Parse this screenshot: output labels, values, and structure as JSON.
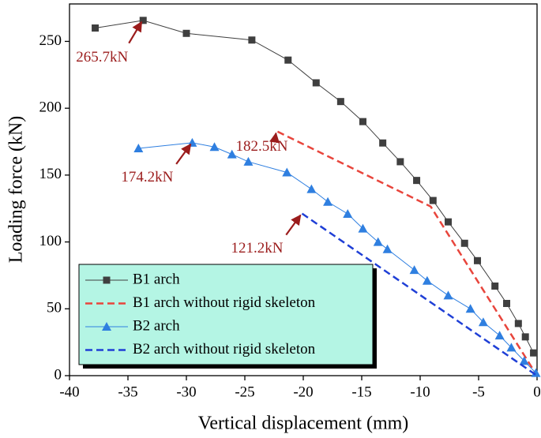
{
  "chart_data": {
    "type": "line",
    "xlabel": "Vertical displacement (mm)",
    "ylabel": "Loading force (kN)",
    "xlim": [
      -40,
      0
    ],
    "ylim": [
      0,
      278
    ],
    "xticks": [
      -40,
      -35,
      -30,
      -25,
      -20,
      -15,
      -10,
      -5,
      0
    ],
    "yticks": [
      0,
      50,
      100,
      150,
      200,
      250
    ],
    "legend": "lower left",
    "series": [
      {
        "name": "B1 arch",
        "color": "#3f3f3f",
        "style": "solid",
        "marker": "square",
        "x": [
          -37.8,
          -33.7,
          -30.0,
          -24.4,
          -21.3,
          -18.9,
          -16.8,
          -14.9,
          -13.2,
          -11.7,
          -10.3,
          -8.9,
          -7.6,
          -6.2,
          -5.1,
          -3.6,
          -2.6,
          -1.6,
          -1.0,
          -0.3
        ],
        "values": [
          260,
          265.7,
          256,
          251,
          236,
          219,
          205,
          190,
          174,
          160,
          146,
          131,
          115,
          99,
          86,
          67,
          54,
          39,
          29,
          17
        ]
      },
      {
        "name": "B1 arch without rigid skeleton",
        "color": "#e8453c",
        "style": "dashed",
        "marker": null,
        "x": [
          -22.2,
          -9.1,
          0
        ],
        "values": [
          182.5,
          126.5,
          0
        ]
      },
      {
        "name": "B2 arch",
        "color": "#2f7fe0",
        "style": "solid",
        "marker": "triangle",
        "x": [
          -34.1,
          -29.5,
          -27.6,
          -26.1,
          -24.7,
          -21.4,
          -19.3,
          -17.9,
          -16.2,
          -14.9,
          -13.6,
          -12.8,
          -10.5,
          -9.4,
          -7.6,
          -5.7,
          -4.6,
          -3.2,
          -2.2,
          -1.1,
          -0.1
        ],
        "values": [
          170,
          174.2,
          171,
          165.5,
          160,
          152,
          139.5,
          130,
          121,
          110,
          100,
          94.6,
          79,
          71,
          60,
          50,
          40,
          30,
          21,
          11,
          2
        ]
      },
      {
        "name": "B2 arch without rigid skeleton",
        "color": "#1f3fd6",
        "style": "dashed",
        "marker": null,
        "x": [
          -20.1,
          0
        ],
        "values": [
          121.2,
          0
        ]
      }
    ],
    "annotations": [
      {
        "text": "265.7kN",
        "x": -33.7,
        "y": 265.7
      },
      {
        "text": "182.5kN",
        "x": -22.2,
        "y": 182.5
      },
      {
        "text": "174.2kN",
        "x": -29.5,
        "y": 174.2
      },
      {
        "text": "121.2kN",
        "x": -20.1,
        "y": 121.2
      }
    ]
  }
}
